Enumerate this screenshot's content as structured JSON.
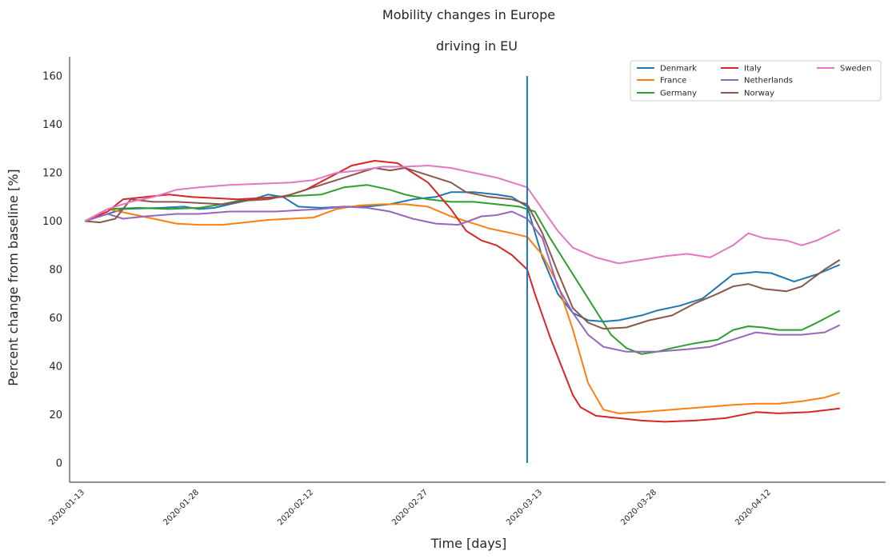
{
  "chart_data": {
    "type": "line",
    "title": "Mobility changes in Europe",
    "subtitle": "driving in EU",
    "xlabel": "Time [days]",
    "ylabel": "Percent change from baseline [%]",
    "x_range": [
      "2020-01-11",
      "2020-04-27"
    ],
    "ylim": [
      -8,
      168
    ],
    "yticks": [
      0,
      20,
      40,
      60,
      80,
      100,
      120,
      140,
      160
    ],
    "xticks": [
      "2020-01-13",
      "2020-01-28",
      "2020-02-12",
      "2020-02-27",
      "2020-03-13",
      "2020-03-28",
      "2020-04-12"
    ],
    "grid": false,
    "legend_position": "top-right",
    "vline": {
      "x": "2020-03-11",
      "y_from": 0,
      "y_to": 160,
      "color": "#1f77b4"
    },
    "series": [
      {
        "name": "Denmark",
        "color": "#1f77b4",
        "points": [
          [
            "2020-01-13",
            100
          ],
          [
            "2020-01-18",
            105
          ],
          [
            "2020-01-23",
            105.5
          ],
          [
            "2020-01-26",
            106
          ],
          [
            "2020-01-28",
            105
          ],
          [
            "2020-01-30",
            105.5
          ],
          [
            "2020-02-01",
            107
          ],
          [
            "2020-02-04",
            109
          ],
          [
            "2020-02-06",
            111
          ],
          [
            "2020-02-08",
            110
          ],
          [
            "2020-02-10",
            106
          ],
          [
            "2020-02-13",
            105.5
          ],
          [
            "2020-02-16",
            106
          ],
          [
            "2020-02-19",
            106
          ],
          [
            "2020-02-22",
            107
          ],
          [
            "2020-02-25",
            109
          ],
          [
            "2020-02-28",
            110
          ],
          [
            "2020-03-01",
            112
          ],
          [
            "2020-03-04",
            112
          ],
          [
            "2020-03-07",
            111
          ],
          [
            "2020-03-09",
            110
          ],
          [
            "2020-03-11",
            106
          ],
          [
            "2020-03-13",
            85
          ],
          [
            "2020-03-15",
            70
          ],
          [
            "2020-03-17",
            62
          ],
          [
            "2020-03-19",
            59
          ],
          [
            "2020-03-21",
            58.5
          ],
          [
            "2020-03-23",
            59
          ],
          [
            "2020-03-26",
            61
          ],
          [
            "2020-03-28",
            63
          ],
          [
            "2020-03-31",
            65
          ],
          [
            "2020-04-03",
            68
          ],
          [
            "2020-04-05",
            73
          ],
          [
            "2020-04-07",
            78
          ],
          [
            "2020-04-10",
            79
          ],
          [
            "2020-04-12",
            78.5
          ],
          [
            "2020-04-15",
            75
          ],
          [
            "2020-04-18",
            78
          ],
          [
            "2020-04-21",
            82
          ]
        ]
      },
      {
        "name": "France",
        "color": "#ff7f0e",
        "points": [
          [
            "2020-01-13",
            100
          ],
          [
            "2020-01-16",
            105
          ],
          [
            "2020-01-19",
            103
          ],
          [
            "2020-01-22",
            101
          ],
          [
            "2020-01-25",
            99
          ],
          [
            "2020-01-28",
            98.5
          ],
          [
            "2020-01-31",
            98.5
          ],
          [
            "2020-02-03",
            99.5
          ],
          [
            "2020-02-06",
            100.5
          ],
          [
            "2020-02-09",
            101
          ],
          [
            "2020-02-12",
            101.5
          ],
          [
            "2020-02-15",
            105
          ],
          [
            "2020-02-18",
            106.5
          ],
          [
            "2020-02-21",
            107
          ],
          [
            "2020-02-24",
            107
          ],
          [
            "2020-02-27",
            106
          ],
          [
            "2020-03-01",
            102
          ],
          [
            "2020-03-04",
            99
          ],
          [
            "2020-03-06",
            97
          ],
          [
            "2020-03-09",
            95
          ],
          [
            "2020-03-11",
            93.5
          ],
          [
            "2020-03-13",
            86
          ],
          [
            "2020-03-15",
            74
          ],
          [
            "2020-03-17",
            55
          ],
          [
            "2020-03-19",
            33
          ],
          [
            "2020-03-21",
            22
          ],
          [
            "2020-03-23",
            20.5
          ],
          [
            "2020-03-26",
            21
          ],
          [
            "2020-03-30",
            22
          ],
          [
            "2020-04-03",
            23
          ],
          [
            "2020-04-07",
            24
          ],
          [
            "2020-04-10",
            24.5
          ],
          [
            "2020-04-13",
            24.5
          ],
          [
            "2020-04-16",
            25.5
          ],
          [
            "2020-04-19",
            27
          ],
          [
            "2020-04-21",
            29
          ]
        ]
      },
      {
        "name": "Germany",
        "color": "#2ca02c",
        "points": [
          [
            "2020-01-13",
            100
          ],
          [
            "2020-01-16",
            105
          ],
          [
            "2020-01-20",
            105.5
          ],
          [
            "2020-01-24",
            105
          ],
          [
            "2020-01-28",
            105.5
          ],
          [
            "2020-01-31",
            107
          ],
          [
            "2020-02-03",
            109
          ],
          [
            "2020-02-07",
            110
          ],
          [
            "2020-02-10",
            110.5
          ],
          [
            "2020-02-13",
            111
          ],
          [
            "2020-02-16",
            114
          ],
          [
            "2020-02-19",
            115
          ],
          [
            "2020-02-22",
            113
          ],
          [
            "2020-02-24",
            111
          ],
          [
            "2020-02-27",
            109
          ],
          [
            "2020-03-01",
            108
          ],
          [
            "2020-03-04",
            108
          ],
          [
            "2020-03-07",
            107
          ],
          [
            "2020-03-10",
            106
          ],
          [
            "2020-03-12",
            104
          ],
          [
            "2020-03-14",
            93
          ],
          [
            "2020-03-16",
            83
          ],
          [
            "2020-03-18",
            73
          ],
          [
            "2020-03-20",
            63
          ],
          [
            "2020-03-22",
            53
          ],
          [
            "2020-03-24",
            47.5
          ],
          [
            "2020-03-26",
            45
          ],
          [
            "2020-03-28",
            46
          ],
          [
            "2020-03-30",
            47.5
          ],
          [
            "2020-04-02",
            49.5
          ],
          [
            "2020-04-05",
            51
          ],
          [
            "2020-04-07",
            55
          ],
          [
            "2020-04-09",
            56.5
          ],
          [
            "2020-04-11",
            56
          ],
          [
            "2020-04-13",
            55
          ],
          [
            "2020-04-16",
            55
          ],
          [
            "2020-04-18",
            58
          ],
          [
            "2020-04-21",
            63
          ]
        ]
      },
      {
        "name": "Italy",
        "color": "#d62728",
        "points": [
          [
            "2020-01-13",
            100
          ],
          [
            "2020-01-16",
            104
          ],
          [
            "2020-01-18",
            109
          ],
          [
            "2020-01-21",
            110
          ],
          [
            "2020-01-24",
            111
          ],
          [
            "2020-01-27",
            110
          ],
          [
            "2020-01-30",
            109.5
          ],
          [
            "2020-02-02",
            109
          ],
          [
            "2020-02-05",
            109.5
          ],
          [
            "2020-02-08",
            110
          ],
          [
            "2020-02-11",
            113
          ],
          [
            "2020-02-14",
            118
          ],
          [
            "2020-02-17",
            123
          ],
          [
            "2020-02-20",
            125
          ],
          [
            "2020-02-23",
            124
          ],
          [
            "2020-02-25",
            120
          ],
          [
            "2020-02-27",
            116
          ],
          [
            "2020-03-01",
            105
          ],
          [
            "2020-03-03",
            96
          ],
          [
            "2020-03-05",
            92
          ],
          [
            "2020-03-07",
            90
          ],
          [
            "2020-03-09",
            86
          ],
          [
            "2020-03-11",
            80
          ],
          [
            "2020-03-12",
            70
          ],
          [
            "2020-03-14",
            52
          ],
          [
            "2020-03-16",
            36
          ],
          [
            "2020-03-17",
            28
          ],
          [
            "2020-03-18",
            23
          ],
          [
            "2020-03-20",
            19.5
          ],
          [
            "2020-03-23",
            18.5
          ],
          [
            "2020-03-26",
            17.5
          ],
          [
            "2020-03-29",
            17
          ],
          [
            "2020-04-02",
            17.5
          ],
          [
            "2020-04-06",
            18.5
          ],
          [
            "2020-04-10",
            21
          ],
          [
            "2020-04-13",
            20.5
          ],
          [
            "2020-04-17",
            21
          ],
          [
            "2020-04-21",
            22.5
          ]
        ]
      },
      {
        "name": "Netherlands",
        "color": "#9467bd",
        "points": [
          [
            "2020-01-13",
            100
          ],
          [
            "2020-01-16",
            103
          ],
          [
            "2020-01-18",
            101
          ],
          [
            "2020-01-21",
            102
          ],
          [
            "2020-01-25",
            103
          ],
          [
            "2020-01-28",
            103
          ],
          [
            "2020-02-01",
            104
          ],
          [
            "2020-02-04",
            104
          ],
          [
            "2020-02-07",
            104
          ],
          [
            "2020-02-10",
            104.5
          ],
          [
            "2020-02-13",
            105
          ],
          [
            "2020-02-16",
            106
          ],
          [
            "2020-02-19",
            105.5
          ],
          [
            "2020-02-22",
            104
          ],
          [
            "2020-02-25",
            101
          ],
          [
            "2020-02-28",
            99
          ],
          [
            "2020-03-02",
            98.5
          ],
          [
            "2020-03-05",
            102
          ],
          [
            "2020-03-07",
            102.5
          ],
          [
            "2020-03-09",
            104
          ],
          [
            "2020-03-11",
            101
          ],
          [
            "2020-03-13",
            93
          ],
          [
            "2020-03-15",
            73
          ],
          [
            "2020-03-17",
            62
          ],
          [
            "2020-03-19",
            53
          ],
          [
            "2020-03-21",
            48
          ],
          [
            "2020-03-24",
            46
          ],
          [
            "2020-03-28",
            46
          ],
          [
            "2020-04-01",
            47
          ],
          [
            "2020-04-04",
            48
          ],
          [
            "2020-04-07",
            51
          ],
          [
            "2020-04-10",
            54
          ],
          [
            "2020-04-13",
            53
          ],
          [
            "2020-04-16",
            53
          ],
          [
            "2020-04-19",
            54
          ],
          [
            "2020-04-21",
            57
          ]
        ]
      },
      {
        "name": "Norway",
        "color": "#8c564b",
        "points": [
          [
            "2020-01-13",
            100
          ],
          [
            "2020-01-15",
            99.5
          ],
          [
            "2020-01-17",
            101
          ],
          [
            "2020-01-19",
            109
          ],
          [
            "2020-01-22",
            108
          ],
          [
            "2020-01-25",
            108
          ],
          [
            "2020-01-28",
            107.5
          ],
          [
            "2020-01-31",
            107
          ],
          [
            "2020-02-03",
            108.5
          ],
          [
            "2020-02-06",
            109
          ],
          [
            "2020-02-09",
            111
          ],
          [
            "2020-02-12",
            114
          ],
          [
            "2020-02-15",
            117
          ],
          [
            "2020-02-18",
            120
          ],
          [
            "2020-02-20",
            122
          ],
          [
            "2020-02-22",
            121
          ],
          [
            "2020-02-24",
            122
          ],
          [
            "2020-02-27",
            119
          ],
          [
            "2020-03-01",
            116
          ],
          [
            "2020-03-03",
            112
          ],
          [
            "2020-03-06",
            110
          ],
          [
            "2020-03-09",
            109
          ],
          [
            "2020-03-11",
            107
          ],
          [
            "2020-03-13",
            95
          ],
          [
            "2020-03-15",
            79
          ],
          [
            "2020-03-17",
            64
          ],
          [
            "2020-03-19",
            58
          ],
          [
            "2020-03-21",
            55.5
          ],
          [
            "2020-03-24",
            56
          ],
          [
            "2020-03-27",
            59
          ],
          [
            "2020-03-30",
            61
          ],
          [
            "2020-04-02",
            66
          ],
          [
            "2020-04-05",
            70
          ],
          [
            "2020-04-07",
            73
          ],
          [
            "2020-04-09",
            74
          ],
          [
            "2020-04-11",
            72
          ],
          [
            "2020-04-14",
            71
          ],
          [
            "2020-04-16",
            73
          ],
          [
            "2020-04-19",
            80
          ],
          [
            "2020-04-21",
            84
          ]
        ]
      },
      {
        "name": "Sweden",
        "color": "#e377c2",
        "points": [
          [
            "2020-01-13",
            100
          ],
          [
            "2020-01-16",
            105
          ],
          [
            "2020-01-19",
            108
          ],
          [
            "2020-01-22",
            110
          ],
          [
            "2020-01-25",
            113
          ],
          [
            "2020-01-28",
            114
          ],
          [
            "2020-02-01",
            115
          ],
          [
            "2020-02-05",
            115.5
          ],
          [
            "2020-02-09",
            116
          ],
          [
            "2020-02-12",
            117
          ],
          [
            "2020-02-15",
            120
          ],
          [
            "2020-02-18",
            121
          ],
          [
            "2020-02-21",
            122.5
          ],
          [
            "2020-02-24",
            122.5
          ],
          [
            "2020-02-27",
            123
          ],
          [
            "2020-03-01",
            122
          ],
          [
            "2020-03-04",
            120
          ],
          [
            "2020-03-07",
            118
          ],
          [
            "2020-03-09",
            116
          ],
          [
            "2020-03-11",
            114
          ],
          [
            "2020-03-13",
            105
          ],
          [
            "2020-03-15",
            96
          ],
          [
            "2020-03-17",
            89
          ],
          [
            "2020-03-20",
            85
          ],
          [
            "2020-03-23",
            82.5
          ],
          [
            "2020-03-26",
            84
          ],
          [
            "2020-03-29",
            85.5
          ],
          [
            "2020-04-01",
            86.5
          ],
          [
            "2020-04-04",
            85
          ],
          [
            "2020-04-07",
            90
          ],
          [
            "2020-04-09",
            95
          ],
          [
            "2020-04-11",
            93
          ],
          [
            "2020-04-14",
            92
          ],
          [
            "2020-04-16",
            90
          ],
          [
            "2020-04-18",
            92
          ],
          [
            "2020-04-21",
            96.5
          ]
        ]
      }
    ]
  }
}
